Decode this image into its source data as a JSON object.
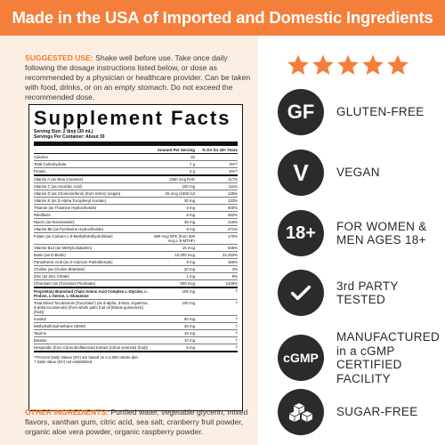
{
  "banner": {
    "title": "Made in the USA of Imported and Domestic Ingredients"
  },
  "usage": {
    "label": "SUGGESTED USE:",
    "text": " Shake well before use. Take once daily following the dosage instructions listed below, or dose as recommended by a physician or healthcare provider. Can be taken with food, drinks, or on an empty stomach. Do   not exceed the recommended dose."
  },
  "facts": {
    "title": "Supplement Facts",
    "serving_size": "Serving Size: 2 tbsp (30 mL)",
    "servings_per": "Servings Per Container: About 30",
    "col_amount": "Amount Per Serving",
    "col_dv": "% DV for 18+ Years",
    "rows": [
      {
        "name": "Calories",
        "amount": "40",
        "dv": ""
      },
      {
        "name": "Total Carbohydrate",
        "amount": "7 g",
        "dv": "3%**"
      },
      {
        "name": "Protein",
        "amount": "3 g",
        "dv": "6%**",
        "end": true
      },
      {
        "name": "Vitamin A (as Beta Carotene)",
        "amount": "1050 mcg RAE",
        "dv": "117%"
      },
      {
        "name": "Vitamin C (as Ascorbic Acid)",
        "amount": "100 mg",
        "dv": "111%"
      },
      {
        "name": "Vitamin D (as Cholecalciferol) (from lichen) (vegan)",
        "amount": "25 mcg (1000 IU)",
        "dv": "125%"
      },
      {
        "name": "Vitamin E (as D-Alpha Tocopheryl Acetate)",
        "amount": "20 mg",
        "dv": "133%"
      },
      {
        "name": "Thiamin (as Thiamine Hydrochloride)",
        "amount": "6 mg",
        "dv": "500%"
      },
      {
        "name": "Riboflavin",
        "amount": "6 mg",
        "dv": "462%"
      },
      {
        "name": "Niacin (as Niacinamide)",
        "amount": "35 mg",
        "dv": "219%"
      },
      {
        "name": "Vitamin B6 (as Pyridoxine Hydrochloride)",
        "amount": "8 mg",
        "dv": "471%"
      },
      {
        "name": "Folate (as Calcium L-5-Methyltetrahydrofolate)",
        "amount": "680 mcg DFE (from 400 mcg L-5-MTHF)",
        "dv": "170%"
      },
      {
        "name": "Vitamin B12 (as Methylcobalamin)",
        "amount": "15 mcg",
        "dv": "625%"
      },
      {
        "name": "Biotin (as D-Biotin)",
        "amount": "10,000 mcg",
        "dv": "33,333%"
      },
      {
        "name": "Pantothenic Acid (as D-Calcium Pantothenate)",
        "amount": "8 mg",
        "dv": "160%"
      },
      {
        "name": "Choline (as Choline Bitartrate)",
        "amount": "20 mg",
        "dv": "4%"
      },
      {
        "name": "Zinc (as Zinc Citrate)",
        "amount": "1 mg",
        "dv": "9%"
      },
      {
        "name": "Chromium (as Chromium Picolinate)",
        "amount": "500 mcg",
        "dv": "1429%",
        "end": true
      },
      {
        "name": "Proprietary Branched Chain Amino Acid Complex L-Glycine, L-Proline, L-Serine, L-Glutamine",
        "amount": "105 mg",
        "dv": "†",
        "blend": true
      },
      {
        "name": "Total Mixed Tocotrienols (TocoGaia*) (as d-alpha, d-beta, d-gamma, d-delta tocotrienols) (from whole palm fruit oil [Elaeis guineensis] (fruit))",
        "amount": "100 mg",
        "dv": "†"
      },
      {
        "name": "Inositol",
        "amount": "50 mg",
        "dv": "†"
      },
      {
        "name": "Methylsulfonylmethane (MSM)",
        "amount": "30 mg",
        "dv": "†"
      },
      {
        "name": "Taurine",
        "amount": "15 mg",
        "dv": "†"
      },
      {
        "name": "Betaine",
        "amount": "10 mg",
        "dv": "†"
      },
      {
        "name": "Hesperidin (from Citrus Bioflavonoid Extract (Citrus sinensis) (fruit))",
        "amount": "5 mg",
        "dv": "†",
        "end": true
      }
    ],
    "foot1": "**Percent Daily Values (DV) are based on a 2,000 calorie diet.",
    "foot2": "† Daily Value (DV) not established."
  },
  "ingredients": {
    "label": "OTHER INGREDIENTS:",
    "text": " Purified water, vegetable glycerin, mixed flavors, xanthan gum, citric acid, sea salt, cranberry fruit powder, organic aloe vera powder, organic raspberry powder."
  },
  "colors": {
    "accent": "#f47f3a",
    "badge": "#2b2b2b",
    "panel": "#fdeee3"
  },
  "rating": {
    "stars": 5
  },
  "badges": [
    {
      "icon": "gf-icon",
      "glyph": "GF",
      "label": "GLUTEN-FREE"
    },
    {
      "icon": "vegan-icon",
      "glyph": "V",
      "label": "VEGAN"
    },
    {
      "icon": "age-18-icon",
      "glyph": "18+",
      "label": "FOR WOMEN &\nMEN AGES 18+"
    },
    {
      "icon": "checkmark-icon",
      "glyph": "",
      "label": "3rd PARTY\nTESTED"
    },
    {
      "icon": "cgmp-icon",
      "glyph": "cGMP",
      "label": "MANUFACTURED\nin a cGMP\nCERTIFIED\nFACILITY"
    },
    {
      "icon": "sugar-cubes-icon",
      "glyph": "",
      "label": "SUGAR-FREE"
    }
  ]
}
